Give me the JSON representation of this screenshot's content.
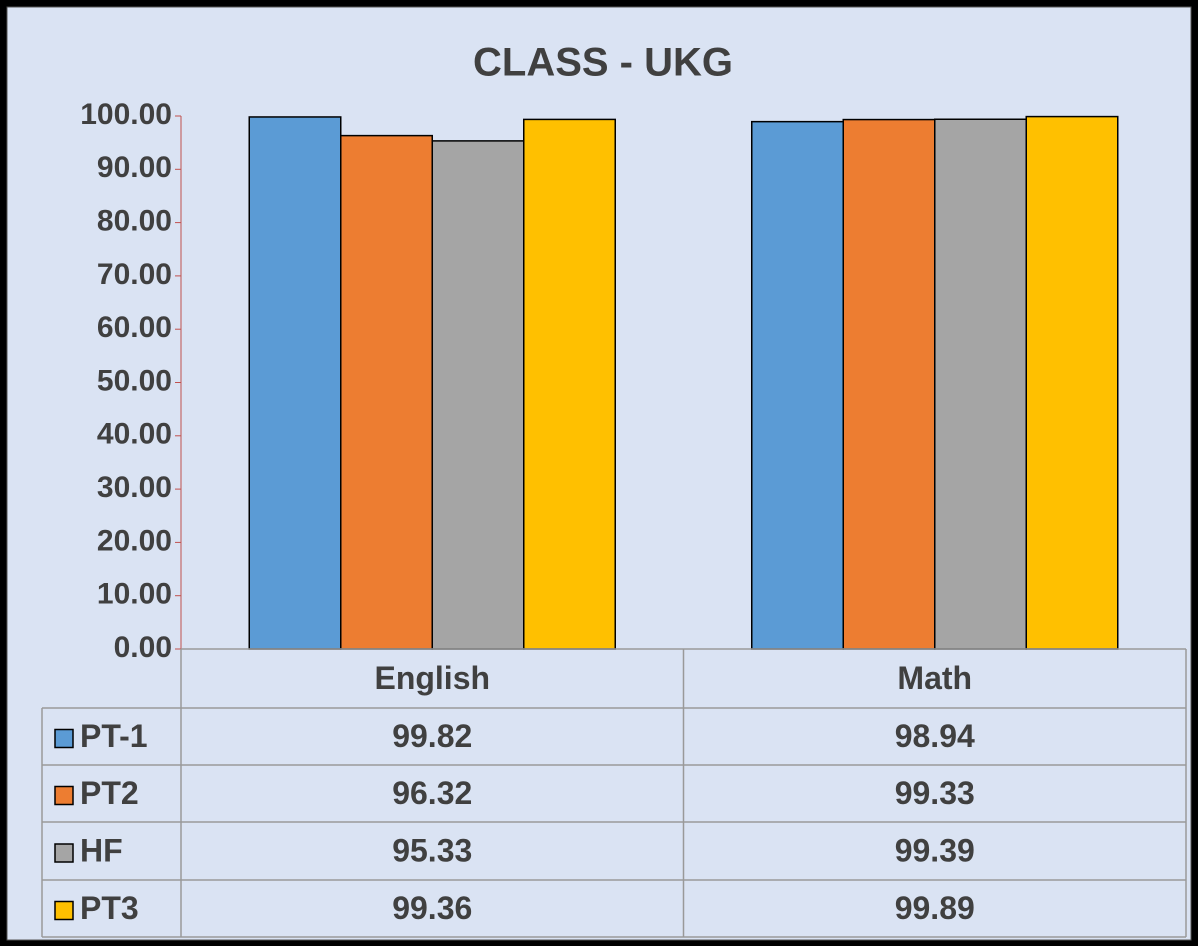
{
  "chart_data": {
    "type": "bar",
    "title": "CLASS - UKG",
    "categories": [
      "English",
      "Math"
    ],
    "series": [
      {
        "name": "PT-1",
        "color": "#5b9bd5",
        "values": [
          99.82,
          98.94
        ]
      },
      {
        "name": "PT2",
        "color": "#ed7d31",
        "values": [
          96.32,
          99.33
        ]
      },
      {
        "name": "HF",
        "color": "#a5a5a5",
        "values": [
          95.33,
          99.39
        ]
      },
      {
        "name": "PT3",
        "color": "#ffc000",
        "values": [
          99.36,
          99.89
        ]
      }
    ],
    "ylim": [
      0,
      100
    ],
    "yticks": [
      {
        "value": 0,
        "label": "0.00"
      },
      {
        "value": 10,
        "label": "10.00"
      },
      {
        "value": 20,
        "label": "20.00"
      },
      {
        "value": 30,
        "label": "30.00"
      },
      {
        "value": 40,
        "label": "40.00"
      },
      {
        "value": 50,
        "label": "50.00"
      },
      {
        "value": 60,
        "label": "60.00"
      },
      {
        "value": 70,
        "label": "70.00"
      },
      {
        "value": 80,
        "label": "80.00"
      },
      {
        "value": 90,
        "label": "90.00"
      },
      {
        "value": 100,
        "label": "100.00"
      }
    ],
    "data_table": true
  }
}
